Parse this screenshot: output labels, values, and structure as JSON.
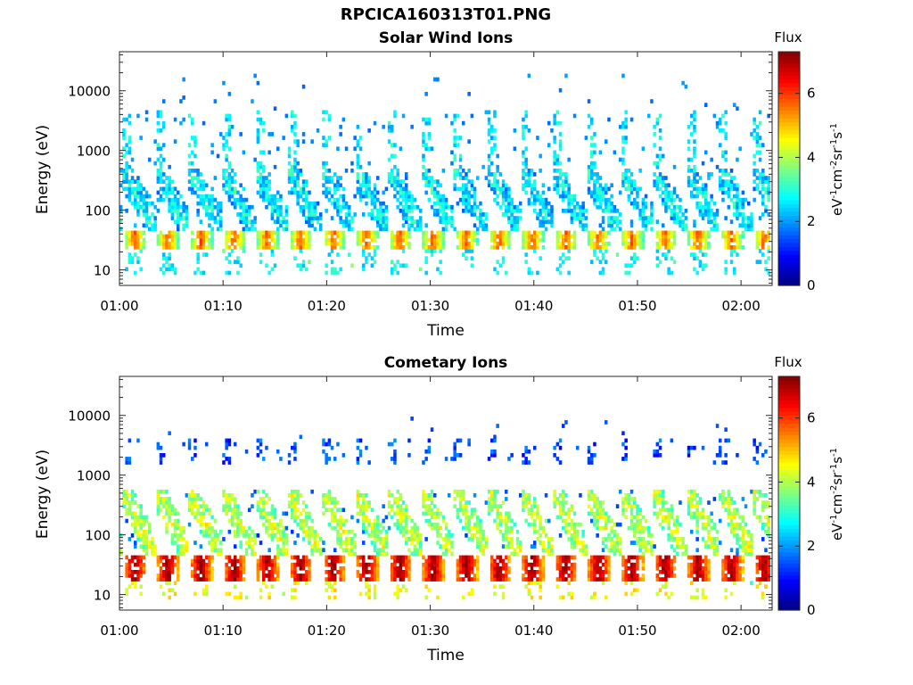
{
  "figure_title": "RPCICA160313T01.PNG",
  "chart_data": [
    {
      "type": "heatmap",
      "title": "Solar Wind Ions",
      "xlabel": "Time",
      "ylabel": "Energy (eV)",
      "yscale": "log",
      "x_ticks": [
        "01:00",
        "01:10",
        "01:20",
        "01:30",
        "01:40",
        "01:50",
        "02:00"
      ],
      "x_tick_minutes": [
        0,
        10,
        20,
        30,
        40,
        50,
        60
      ],
      "xlim_minutes": [
        0,
        63
      ],
      "y_ticks": [
        "10",
        "100",
        "1000",
        "10000"
      ],
      "y_tick_values": [
        10,
        100,
        1000,
        10000
      ],
      "ylim": [
        5.5,
        45000
      ],
      "sweep_period_min": 3.2,
      "bursts_start_min": 0.2,
      "profile": {
        "band_low": [
          22,
          45
        ],
        "band_value_range": [
          3.2,
          5.8
        ],
        "dispersed_range": [
          45,
          500
        ],
        "dispersed_value": 2.8,
        "upper_range": [
          500,
          4500
        ],
        "upper_value": 2.6,
        "sparse_value": 1.6,
        "top_sparse_max": 20000
      },
      "colorbar": {
        "label": "Flux",
        "units": "eV-1cm-2sr-1s-1",
        "range": [
          0,
          7.3
        ],
        "ticks": [
          0,
          2,
          4,
          6
        ]
      },
      "grid": false
    },
    {
      "type": "heatmap",
      "title": "Cometary Ions",
      "xlabel": "Time",
      "ylabel": "Energy (eV)",
      "yscale": "log",
      "x_ticks": [
        "01:00",
        "01:10",
        "01:20",
        "01:30",
        "01:40",
        "01:50",
        "02:00"
      ],
      "x_tick_minutes": [
        0,
        10,
        20,
        30,
        40,
        50,
        60
      ],
      "xlim_minutes": [
        0,
        63
      ],
      "y_ticks": [
        "10",
        "100",
        "1000",
        "10000"
      ],
      "y_tick_values": [
        10,
        100,
        1000,
        10000
      ],
      "ylim": [
        5.5,
        45000
      ],
      "sweep_period_min": 3.2,
      "bursts_start_min": 0.2,
      "profile": {
        "band_low": [
          18,
          45
        ],
        "band_value_range": [
          5.0,
          7.2
        ],
        "dispersed_range": [
          45,
          550
        ],
        "dispersed_value": 4.2,
        "upper_range": [
          1500,
          4000
        ],
        "upper_value": 1.4,
        "sparse_value": 1.2,
        "top_sparse_max": 10000
      },
      "colorbar": {
        "label": "Flux",
        "units": "eV-1cm-2sr-1s-1",
        "range": [
          0,
          7.3
        ],
        "ticks": [
          0,
          2,
          4,
          6
        ]
      },
      "grid": false
    }
  ]
}
